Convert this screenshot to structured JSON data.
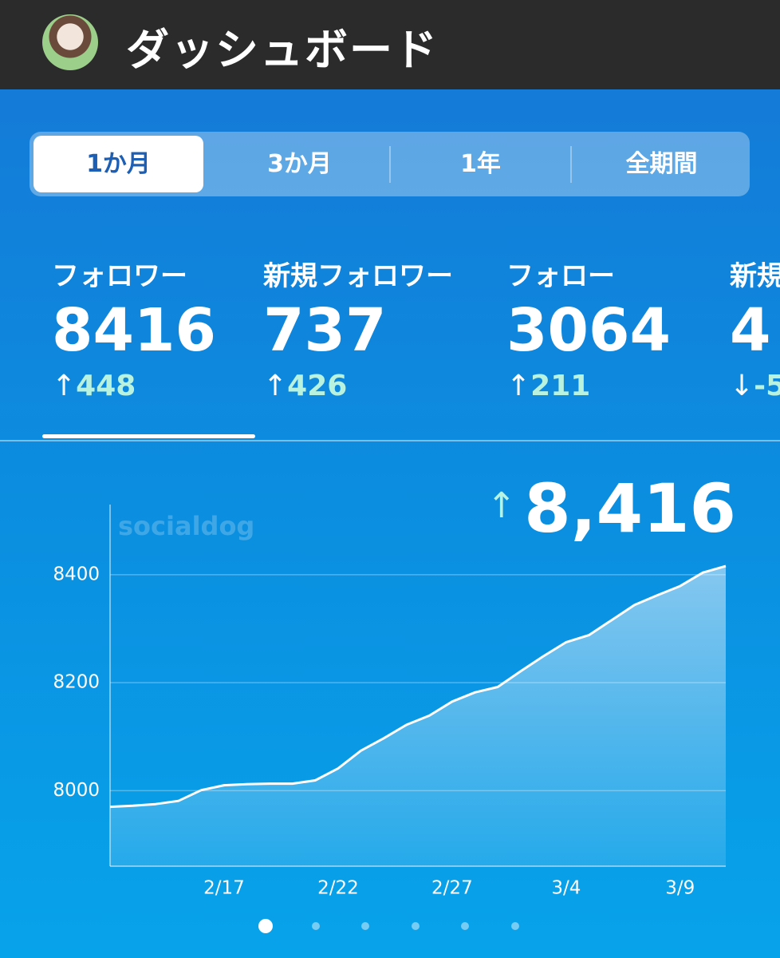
{
  "header": {
    "title": "ダッシュボード"
  },
  "tabs": {
    "items": [
      "1か月",
      "3か月",
      "1年",
      "全期間"
    ],
    "selected": 0
  },
  "stats": {
    "selected": 0,
    "items": [
      {
        "label": "フォロワー",
        "value": "8416",
        "arrow": "↑",
        "change": "448"
      },
      {
        "label": "新規フォロワー",
        "value": "737",
        "arrow": "↑",
        "change": "426"
      },
      {
        "label": "フォロー",
        "value": "3064",
        "arrow": "↑",
        "change": "211"
      },
      {
        "label": "新規",
        "value": "4",
        "arrow": "↓",
        "change": "-5"
      }
    ]
  },
  "summary": {
    "arrow": "↑",
    "value": "8,416"
  },
  "watermark": "socialdog",
  "chart_data": {
    "type": "area",
    "color": "#ffffff",
    "categories": [
      null,
      null,
      null,
      null,
      null,
      "2/17",
      null,
      null,
      null,
      null,
      "2/22",
      null,
      null,
      null,
      null,
      "2/27",
      null,
      null,
      null,
      null,
      "3/4",
      null,
      null,
      null,
      null,
      "3/9",
      null,
      null
    ],
    "values": [
      7970,
      7972,
      7975,
      7981,
      8001,
      8010,
      8012,
      8013,
      8013,
      8019,
      8041,
      8074,
      8097,
      8122,
      8139,
      8165,
      8182,
      8192,
      8221,
      8249,
      8275,
      8288,
      8316,
      8344,
      8362,
      8379,
      8404,
      8416
    ],
    "ylim": [
      7860,
      8530
    ],
    "yticks": [
      8000,
      8200,
      8400
    ],
    "grid": true
  }
}
